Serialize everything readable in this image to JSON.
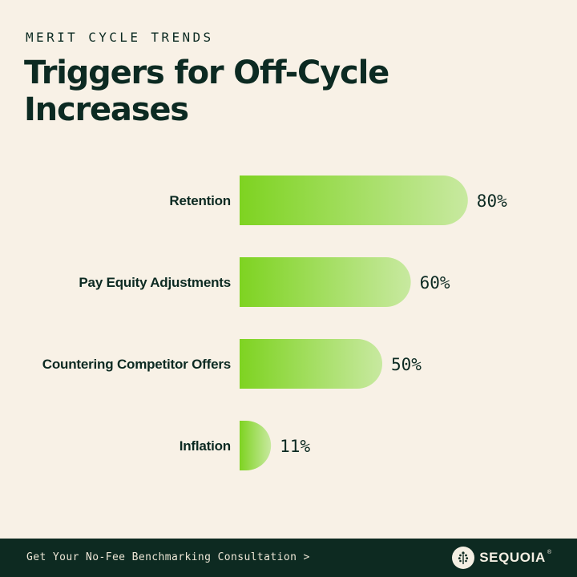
{
  "header": {
    "eyebrow": "MERIT CYCLE TRENDS",
    "title": "Triggers for Off-Cycle Increases"
  },
  "chart_data": {
    "type": "bar",
    "orientation": "horizontal",
    "categories": [
      "Retention",
      "Pay Equity Adjustments",
      "Countering Competitor Offers",
      "Inflation"
    ],
    "values": [
      80,
      60,
      50,
      11
    ],
    "value_labels": [
      "80%",
      "60%",
      "50%",
      "11%"
    ],
    "title": "Triggers for Off-Cycle Increases",
    "xlabel": "",
    "ylabel": "",
    "grid": false,
    "legend": "none",
    "bar_gradient": [
      "#7ed321",
      "#c8e9a0"
    ]
  },
  "footer": {
    "cta": "Get Your No-Fee Benchmarking Consultation >",
    "brand": "SEQUOIA",
    "brand_mark": "®",
    "brand_icon": "tree-icon"
  },
  "colors": {
    "background": "#f8f1e6",
    "text": "#0c2a22",
    "footer_bg": "#0d2a21",
    "bar_start": "#7ed321",
    "bar_end": "#c8e9a0"
  }
}
